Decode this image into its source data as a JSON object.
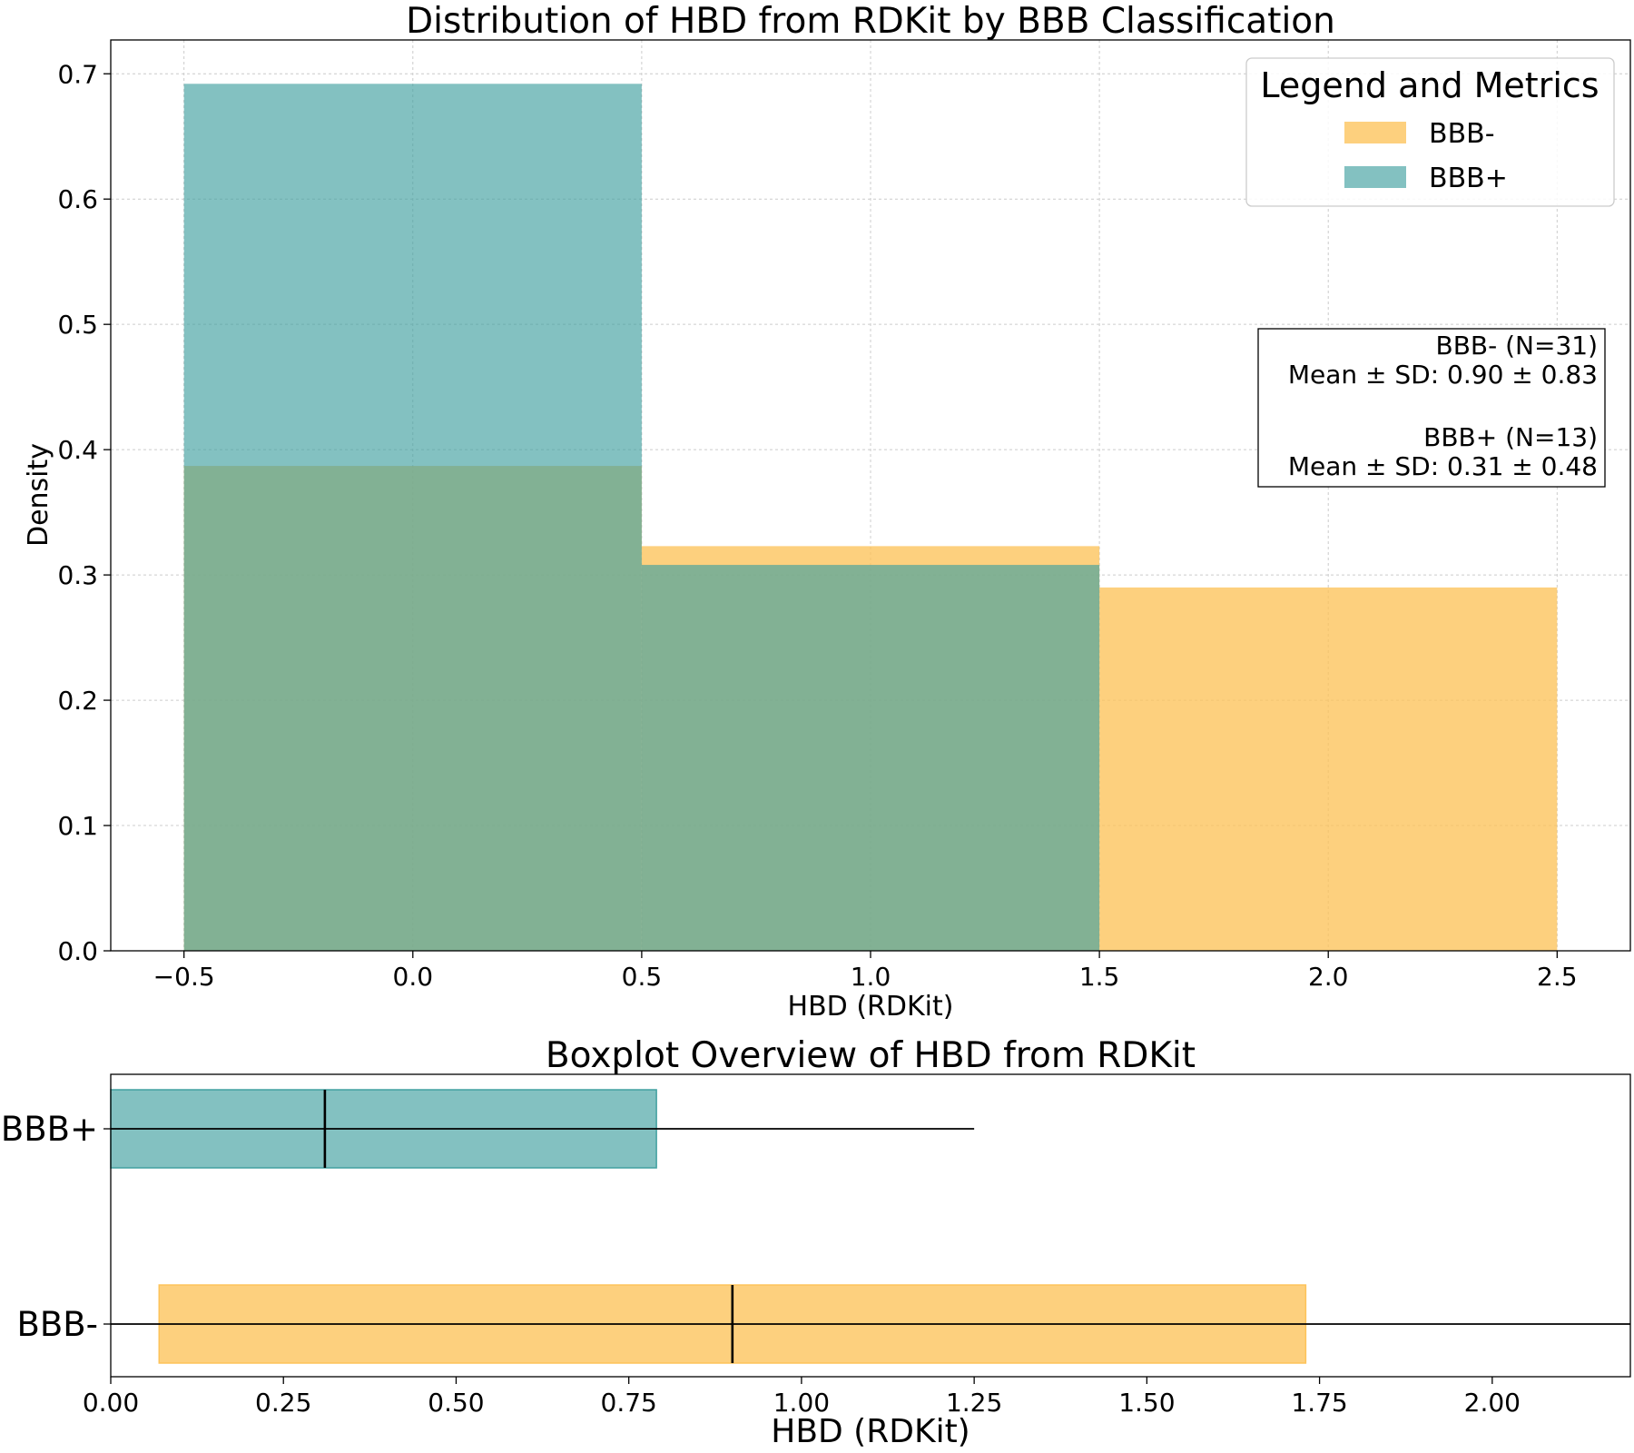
{
  "chart_data": [
    {
      "type": "histogram",
      "title": "Distribution of HBD from RDKit by BBB Classification",
      "xlabel": "HBD (RDKit)",
      "ylabel": "Density",
      "xlim": [
        -0.66,
        2.66
      ],
      "ylim": [
        0,
        0.727
      ],
      "xticks": [
        "−0.5",
        "0.0",
        "0.5",
        "1.0",
        "1.5",
        "2.0",
        "2.5"
      ],
      "xtick_values": [
        -0.5,
        0.0,
        0.5,
        1.0,
        1.5,
        2.0,
        2.5
      ],
      "yticks": [
        "0.0",
        "0.1",
        "0.2",
        "0.3",
        "0.4",
        "0.5",
        "0.6",
        "0.7"
      ],
      "ytick_values": [
        0,
        0.1,
        0.2,
        0.3,
        0.4,
        0.5,
        0.6,
        0.7
      ],
      "grid": true,
      "bin_edges": [
        -0.5,
        0.5,
        1.5,
        2.5
      ],
      "series": [
        {
          "name": "BBB-",
          "color": "#fdc35a",
          "opacity": 0.78,
          "values": [
            0.387,
            0.323,
            0.29
          ]
        },
        {
          "name": "BBB+",
          "color": "#41a0a0",
          "opacity": 0.65,
          "values": [
            0.692,
            0.308,
            0.0
          ]
        }
      ],
      "legend": {
        "title": "Legend and Metrics",
        "placement": "top-right",
        "entries": [
          "BBB-",
          "BBB+"
        ]
      },
      "metrics_box": {
        "lines": [
          "BBB- (N=31)",
          "Mean ± SD: 0.90 ± 0.83",
          "",
          "BBB+ (N=13)",
          "Mean ± SD: 0.31 ± 0.48"
        ]
      }
    },
    {
      "type": "boxplot",
      "title": "Boxplot Overview of HBD from RDKit",
      "xlabel": "HBD (RDKit)",
      "xlim": [
        0,
        2.2
      ],
      "xticks": [
        "0.00",
        "0.25",
        "0.50",
        "0.75",
        "1.00",
        "1.25",
        "1.50",
        "1.75",
        "2.00"
      ],
      "xtick_values": [
        0,
        0.25,
        0.5,
        0.75,
        1.0,
        1.25,
        1.5,
        1.75,
        2.0
      ],
      "categories": [
        "BBB+",
        "BBB-"
      ],
      "boxes": [
        {
          "name": "BBB+",
          "color": "#41a0a0",
          "opacity": 0.65,
          "q1": 0.0,
          "median": 0.31,
          "q3": 0.79,
          "whisker_low": 0.0,
          "whisker_high": 1.25
        },
        {
          "name": "BBB-",
          "color": "#fdc35a",
          "opacity": 0.78,
          "q1": 0.07,
          "median": 0.9,
          "q3": 1.73,
          "whisker_low": 0.0,
          "whisker_high": 2.2
        }
      ]
    }
  ]
}
